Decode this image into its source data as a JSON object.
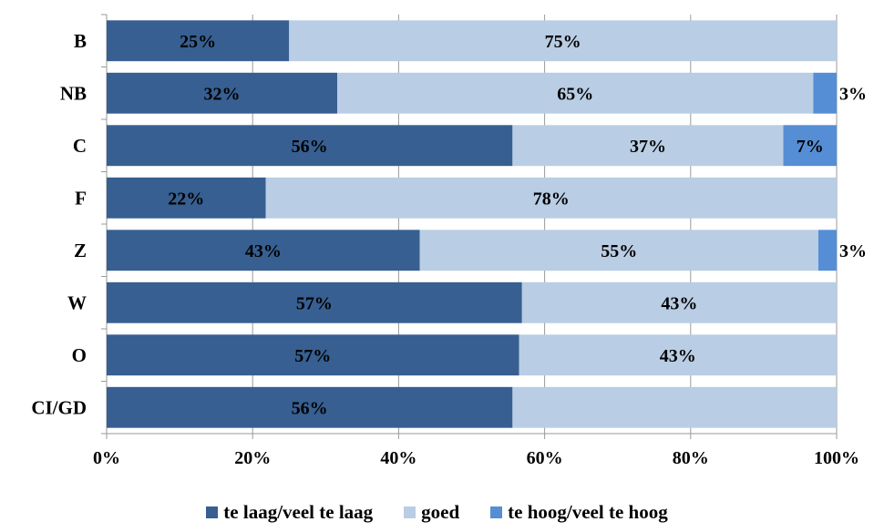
{
  "chart_data": {
    "type": "bar",
    "orientation": "horizontal",
    "stacked": true,
    "categories": [
      "B",
      "NB",
      "C",
      "F",
      "Z",
      "W",
      "O",
      "CI/GD"
    ],
    "series": [
      {
        "name": "te laag/veel te laag",
        "color": "#375f91",
        "values": [
          25,
          31.6,
          55.6,
          21.8,
          42.9,
          56.9,
          56.5,
          55.6
        ],
        "labels": [
          "25%",
          "32%",
          "56%",
          "22%",
          "43%",
          "57%",
          "57%",
          "56%"
        ]
      },
      {
        "name": "goed",
        "color": "#b9cde4",
        "values": [
          75,
          65.2,
          37.1,
          78.2,
          54.6,
          43.1,
          43.5,
          44.4
        ],
        "labels": [
          "75%",
          "65%",
          "37%",
          "78%",
          "55%",
          "43%",
          "43%",
          ""
        ]
      },
      {
        "name": "te hoog/veel te hoog",
        "color": "#558ed5",
        "values": [
          0,
          3.2,
          7.3,
          0,
          2.5,
          0,
          0,
          0
        ],
        "labels": [
          "",
          "3%",
          "7%",
          "",
          "3%",
          "",
          "",
          ""
        ]
      }
    ],
    "xlim": [
      0,
      100
    ],
    "x_ticks": [
      "0%",
      "20%",
      "40%",
      "60%",
      "80%",
      "100%"
    ],
    "grid": true,
    "legend_position": "bottom"
  }
}
